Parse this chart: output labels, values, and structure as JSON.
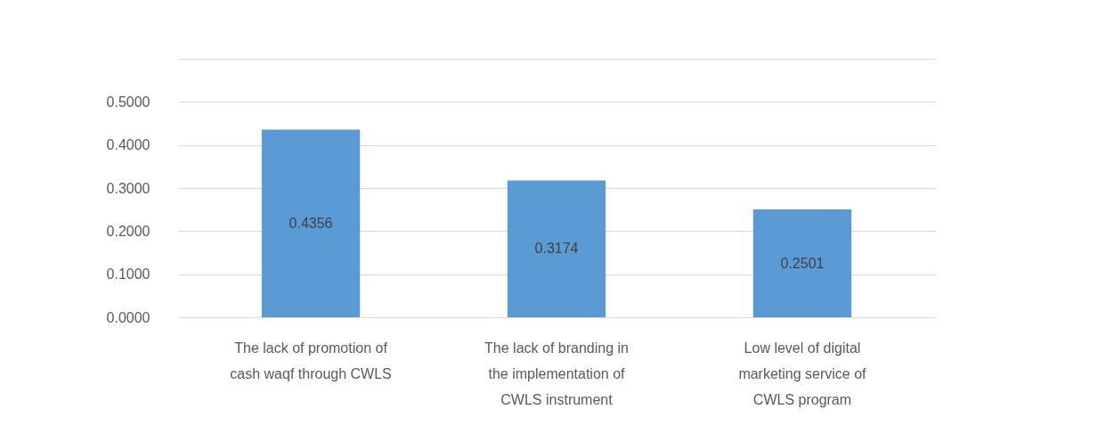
{
  "chart_data": {
    "type": "bar",
    "categories": [
      "The lack of promotion of cash waqf through CWLS",
      "The lack of branding in the implementation of CWLS instrument",
      "Low level of digital marketing service of CWLS program"
    ],
    "values": [
      0.4356,
      0.3174,
      0.2501
    ],
    "color": "#5b9bd5",
    "ylim": [
      0,
      0.6
    ],
    "yticks": [
      {
        "value": 0,
        "label": "0.0000"
      },
      {
        "value": 0.1,
        "label": "0.1000"
      },
      {
        "value": 0.2,
        "label": "0.2000"
      },
      {
        "value": 0.3,
        "label": "0.3000"
      },
      {
        "value": 0.4,
        "label": "0.4000"
      },
      {
        "value": 0.5,
        "label": "0.5000"
      },
      {
        "value": 0.6,
        "label": null
      }
    ],
    "grid": "y",
    "data_labels": true
  }
}
